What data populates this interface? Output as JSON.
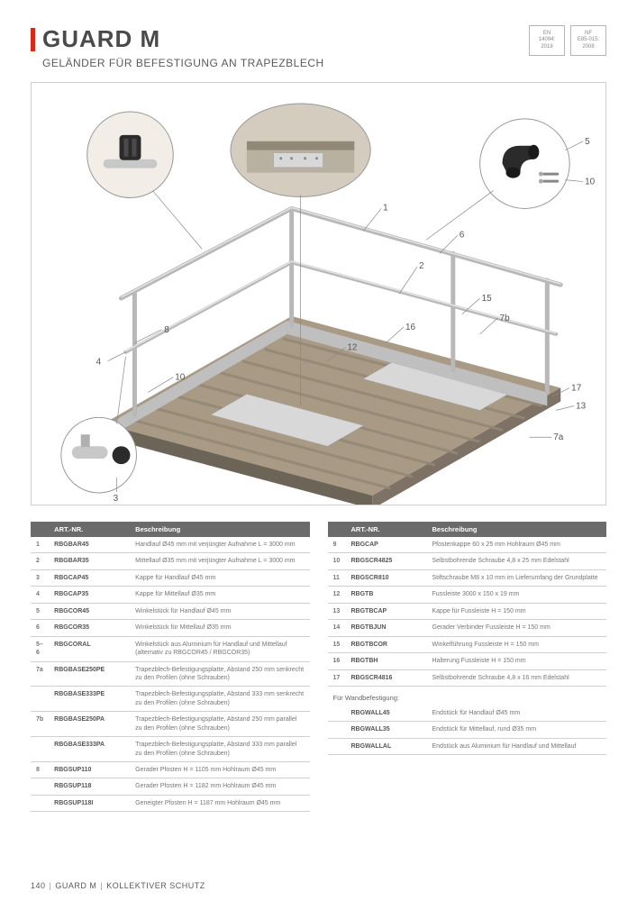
{
  "header": {
    "title": "GUARD M",
    "subtitle": "GELÄNDER FÜR BEFESTIGUNG AN TRAPEZBLECH",
    "cert1_line1": "EN",
    "cert1_line2": "14094:",
    "cert1_line3": "2018",
    "cert2_line1": "NF",
    "cert2_line2": "E85-015:",
    "cert2_line3": "2008"
  },
  "diagram": {
    "roof_top_color": "#a89a85",
    "roof_side_color": "#8c8070",
    "roof_stripe_color": "#948876",
    "rail_color": "#c8c8c8",
    "rail_shadow": "#999999",
    "plate_color": "#d8d8d8",
    "callout_stroke": "#888888",
    "callout_fill": "#ffffff",
    "detail_bg": "#c8bfb2",
    "connector_black": "#2b2b2b",
    "labels": [
      "1",
      "2",
      "3",
      "4",
      "5",
      "6",
      "7a",
      "7b",
      "8",
      "10",
      "12",
      "13",
      "15",
      "16",
      "17"
    ]
  },
  "table_headers": {
    "num": "",
    "art": "ART.-NR.",
    "desc": "Beschreibung"
  },
  "left_rows": [
    {
      "n": "1",
      "art": "RBGBAR45",
      "desc": "Handlauf Ø45 mm mit verjüngter Aufnahme L = 3000 mm"
    },
    {
      "n": "2",
      "art": "RBGBAR35",
      "desc": "Mittellauf Ø35 mm mit verjüngter Aufnahme L = 3000 mm"
    },
    {
      "n": "3",
      "art": "RBGCAP45",
      "desc": "Kappe für Handlauf Ø45 mm"
    },
    {
      "n": "4",
      "art": "RBGCAP35",
      "desc": "Kappe für Mittellauf Ø35 mm"
    },
    {
      "n": "5",
      "art": "RBGCOR45",
      "desc": "Winkelstück für Handlauf Ø45 mm"
    },
    {
      "n": "6",
      "art": "RBGCOR35",
      "desc": "Winkelstück für Mittellauf Ø35 mm"
    },
    {
      "n": "5–6",
      "art": "RBGCORAL",
      "desc": "Winkelstück aus Aluminium für Handlauf und Mittellauf (alternativ zu RBGCOR45 / RBGCOR35)"
    },
    {
      "n": "7a",
      "art": "RBGBASE250PE",
      "desc": "Trapezblech-Befestigungsplatte, Abstand 250 mm senkrecht zu den Profilen (ohne Schrauben)"
    },
    {
      "n": "",
      "art": "RBGBASE333PE",
      "desc": "Trapezblech-Befestigungsplatte, Abstand 333 mm senkrecht zu den Profilen (ohne Schrauben)"
    },
    {
      "n": "7b",
      "art": "RBGBASE250PA",
      "desc": "Trapezblech-Befestigungsplatte, Abstand 250 mm parallel zu den Profilen (ohne Schrauben)"
    },
    {
      "n": "",
      "art": "RBGBASE333PA",
      "desc": "Trapezblech-Befestigungsplatte, Abstand 333 mm parallel zu den Profilen (ohne Schrauben)"
    },
    {
      "n": "8",
      "art": "RBGSUP110",
      "desc": "Gerader Pfosten H = 1105 mm Hohlraum Ø45 mm"
    },
    {
      "n": "",
      "art": "RBGSUP118",
      "desc": "Gerader Pfosten H = 1182 mm Hohlraum Ø45 mm"
    },
    {
      "n": "",
      "art": "RBGSUP118I",
      "desc": "Geneigter Pfosten H = 1187 mm Hohlraum Ø45 mm"
    }
  ],
  "right_rows": [
    {
      "n": "9",
      "art": "RBGCAP",
      "desc": "Pfostenkappe 60 x 25 mm Hohlraum Ø45 mm"
    },
    {
      "n": "10",
      "art": "RBGSCR4825",
      "desc": "Selbstbohrende Schraube 4,8 x 25 mm Edelstahl"
    },
    {
      "n": "11",
      "art": "RBGSCR810",
      "desc": "Stiftschraube M8 x 10 mm im Lieferumfang der Grundplatte"
    },
    {
      "n": "12",
      "art": "RBGTB",
      "desc": "Fussleiste 3000 x 150 x 19 mm"
    },
    {
      "n": "13",
      "art": "RBGTBCAP",
      "desc": "Kappe für Fussleiste H = 150 mm"
    },
    {
      "n": "14",
      "art": "RBGTBJUN",
      "desc": "Gerader Verbinder Fussleiste H = 150 mm"
    },
    {
      "n": "15",
      "art": "RBGTBCOR",
      "desc": "Winkelführung Fussleiste H = 150 mm"
    },
    {
      "n": "16",
      "art": "RBGTBH",
      "desc": "Halterung Fussleiste H = 150 mm"
    },
    {
      "n": "17",
      "art": "RBGSCR4816",
      "desc": "Selbstbohrende Schraube 4,8 x 16 mm Edelstahl"
    }
  ],
  "wall_subhead": "Für Wandbefestigung:",
  "wall_rows": [
    {
      "n": "",
      "art": "RBGWALL45",
      "desc": "Endstück für Handlauf Ø45 mm"
    },
    {
      "n": "",
      "art": "RBGWALL35",
      "desc": "Endstück für Mittellauf, rund Ø35 mm"
    },
    {
      "n": "",
      "art": "RBGWALLAL",
      "desc": "Endstück aus Aluminium für Handlauf und Mittellauf"
    }
  ],
  "footer": {
    "page": "140",
    "product": "GUARD M",
    "category": "KOLLEKTIVER SCHUTZ"
  }
}
